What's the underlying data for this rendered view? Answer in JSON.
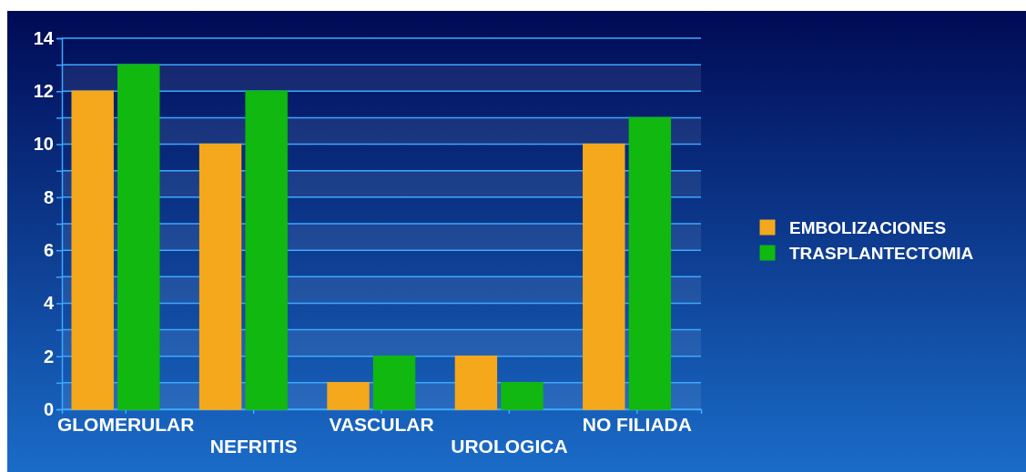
{
  "chart_data": {
    "type": "bar",
    "categories": [
      "GLOMERULAR",
      "NEFRITIS",
      "VASCULAR",
      "UROLOGICA",
      "NO FILIADA"
    ],
    "series": [
      {
        "name": "EMBOLIZACIONES",
        "color": "#f5a81c",
        "values": [
          12,
          10,
          1,
          2,
          10
        ]
      },
      {
        "name": "TRASPLANTECTOMIA",
        "color": "#10b810",
        "values": [
          13,
          12,
          2,
          1,
          11
        ]
      }
    ],
    "ylim": [
      0,
      14
    ],
    "yticks": [
      0,
      {
        "value": 1,
        "label": null
      },
      2,
      {
        "value": 3,
        "label": null
      },
      4,
      {
        "value": 5,
        "label": null
      },
      6,
      {
        "value": 7,
        "label": null
      },
      8,
      {
        "value": 9,
        "label": null
      },
      10,
      {
        "value": 11,
        "label": null
      },
      12,
      {
        "value": 13,
        "label": null
      },
      14
    ],
    "grid": "y",
    "legend": "right"
  }
}
